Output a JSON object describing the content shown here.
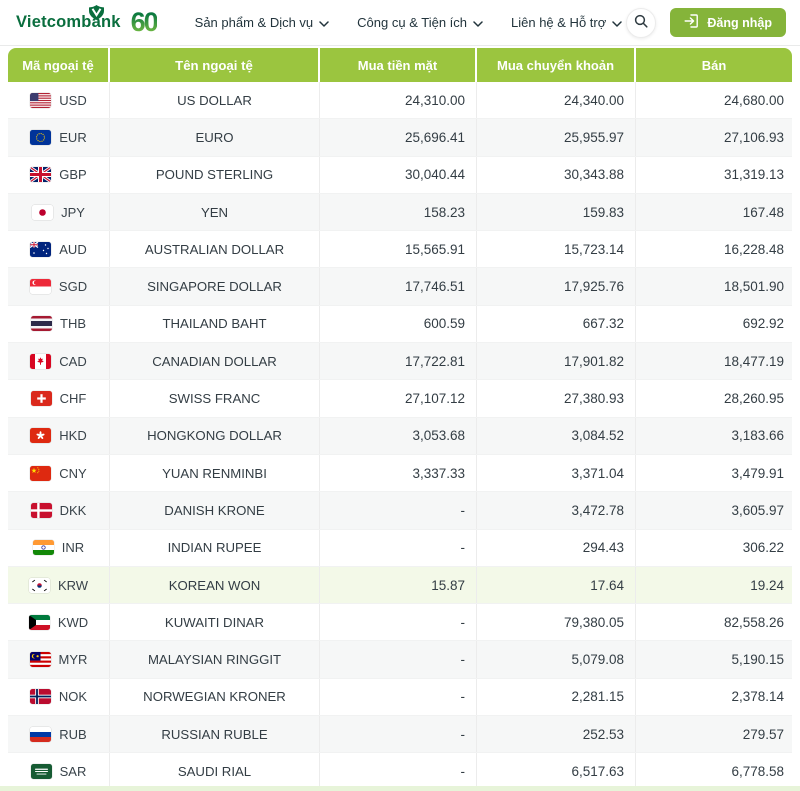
{
  "header": {
    "logo_text": "Vietcombank",
    "anniversary_text": "60",
    "nav": [
      {
        "label": "Sản phẩm & Dịch vụ"
      },
      {
        "label": "Công cụ & Tiện ích"
      },
      {
        "label": "Liên hệ & Hỗ trợ"
      }
    ],
    "search_icon": "search-icon",
    "login_label": "Đăng nhập",
    "login_icon": "login-arrow-icon"
  },
  "colors": {
    "table_header_green": "#9bc53f",
    "login_button_green": "#85b43a",
    "brand_green": "#0a6e3e",
    "highlight_row_green": "#f3f9e8",
    "bottom_strip_green": "#e7f4d9"
  },
  "table": {
    "columns": [
      "Mã ngoại tệ",
      "Tên ngoại tệ",
      "Mua tiền mặt",
      "Mua chuyển khoản",
      "Bán"
    ],
    "rows": [
      {
        "code": "USD",
        "flag_icon": "flag-usd-icon",
        "name": "US DOLLAR",
        "cash": "24,310.00",
        "transfer": "24,340.00",
        "sell": "24,680.00"
      },
      {
        "code": "EUR",
        "flag_icon": "flag-eur-icon",
        "name": "EURO",
        "cash": "25,696.41",
        "transfer": "25,955.97",
        "sell": "27,106.93"
      },
      {
        "code": "GBP",
        "flag_icon": "flag-gbp-icon",
        "name": "POUND STERLING",
        "cash": "30,040.44",
        "transfer": "30,343.88",
        "sell": "31,319.13"
      },
      {
        "code": "JPY",
        "flag_icon": "flag-jpy-icon",
        "name": "YEN",
        "cash": "158.23",
        "transfer": "159.83",
        "sell": "167.48"
      },
      {
        "code": "AUD",
        "flag_icon": "flag-aud-icon",
        "name": "AUSTRALIAN DOLLAR",
        "cash": "15,565.91",
        "transfer": "15,723.14",
        "sell": "16,228.48"
      },
      {
        "code": "SGD",
        "flag_icon": "flag-sgd-icon",
        "name": "SINGAPORE DOLLAR",
        "cash": "17,746.51",
        "transfer": "17,925.76",
        "sell": "18,501.90"
      },
      {
        "code": "THB",
        "flag_icon": "flag-thb-icon",
        "name": "THAILAND BAHT",
        "cash": "600.59",
        "transfer": "667.32",
        "sell": "692.92"
      },
      {
        "code": "CAD",
        "flag_icon": "flag-cad-icon",
        "name": "CANADIAN DOLLAR",
        "cash": "17,722.81",
        "transfer": "17,901.82",
        "sell": "18,477.19"
      },
      {
        "code": "CHF",
        "flag_icon": "flag-chf-icon",
        "name": "SWISS FRANC",
        "cash": "27,107.12",
        "transfer": "27,380.93",
        "sell": "28,260.95"
      },
      {
        "code": "HKD",
        "flag_icon": "flag-hkd-icon",
        "name": "HONGKONG DOLLAR",
        "cash": "3,053.68",
        "transfer": "3,084.52",
        "sell": "3,183.66"
      },
      {
        "code": "CNY",
        "flag_icon": "flag-cny-icon",
        "name": "YUAN RENMINBI",
        "cash": "3,337.33",
        "transfer": "3,371.04",
        "sell": "3,479.91"
      },
      {
        "code": "DKK",
        "flag_icon": "flag-dkk-icon",
        "name": "DANISH KRONE",
        "cash": "-",
        "transfer": "3,472.78",
        "sell": "3,605.97"
      },
      {
        "code": "INR",
        "flag_icon": "flag-inr-icon",
        "name": "INDIAN RUPEE",
        "cash": "-",
        "transfer": "294.43",
        "sell": "306.22"
      },
      {
        "code": "KRW",
        "flag_icon": "flag-krw-icon",
        "name": "KOREAN WON",
        "cash": "15.87",
        "transfer": "17.64",
        "sell": "19.24",
        "highlight": true
      },
      {
        "code": "KWD",
        "flag_icon": "flag-kwd-icon",
        "name": "KUWAITI DINAR",
        "cash": "-",
        "transfer": "79,380.05",
        "sell": "82,558.26"
      },
      {
        "code": "MYR",
        "flag_icon": "flag-myr-icon",
        "name": "MALAYSIAN RINGGIT",
        "cash": "-",
        "transfer": "5,079.08",
        "sell": "5,190.15"
      },
      {
        "code": "NOK",
        "flag_icon": "flag-nok-icon",
        "name": "NORWEGIAN KRONER",
        "cash": "-",
        "transfer": "2,281.15",
        "sell": "2,378.14"
      },
      {
        "code": "RUB",
        "flag_icon": "flag-rub-icon",
        "name": "RUSSIAN RUBLE",
        "cash": "-",
        "transfer": "252.53",
        "sell": "279.57"
      },
      {
        "code": "SAR",
        "flag_icon": "flag-sar-icon",
        "name": "SAUDI RIAL",
        "cash": "-",
        "transfer": "6,517.63",
        "sell": "6,778.58"
      }
    ]
  }
}
